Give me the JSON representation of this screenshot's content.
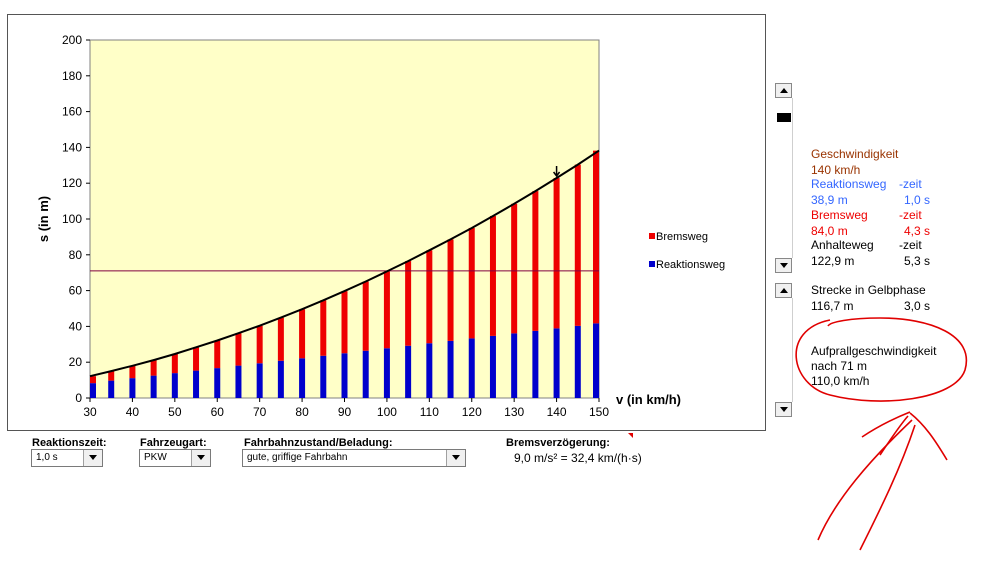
{
  "chart_data": {
    "type": "bar",
    "stacked": true,
    "x": [
      30,
      35,
      40,
      45,
      50,
      55,
      60,
      65,
      70,
      75,
      80,
      85,
      90,
      95,
      100,
      105,
      110,
      115,
      120,
      125,
      130,
      135,
      140,
      145,
      150
    ],
    "series": [
      {
        "name": "Reaktionsweg",
        "color": "#0000cc",
        "values": [
          8.3,
          9.7,
          11.1,
          12.5,
          13.9,
          15.3,
          16.7,
          18.1,
          19.4,
          20.8,
          22.2,
          23.6,
          25.0,
          26.4,
          27.8,
          29.2,
          30.6,
          31.9,
          33.3,
          34.7,
          36.1,
          37.5,
          38.9,
          40.3,
          41.7
        ]
      },
      {
        "name": "Bremsweg",
        "color": "#ee0000",
        "values": [
          3.9,
          5.3,
          6.9,
          8.7,
          10.7,
          13.0,
          15.4,
          18.1,
          21.0,
          24.1,
          27.4,
          31.0,
          34.7,
          38.7,
          42.9,
          47.3,
          51.9,
          56.7,
          61.7,
          67.0,
          72.4,
          78.1,
          84.0,
          90.1,
          96.5
        ]
      }
    ],
    "curve_name": "Anhalteweg",
    "hline_y": 71,
    "marker_x": 140,
    "xlabel": "v (in km/h)",
    "ylabel": "s (in m)",
    "xlim": [
      30,
      150
    ],
    "ylim": [
      0,
      200
    ],
    "xticks": [
      "30",
      "40",
      "50",
      "60",
      "70",
      "80",
      "90",
      "100",
      "110",
      "120",
      "130",
      "140",
      "150"
    ],
    "yticks": [
      "0",
      "20",
      "40",
      "60",
      "80",
      "100",
      "120",
      "140",
      "160",
      "180",
      "200"
    ],
    "plot_bg": "#ffffc8",
    "grid": false,
    "legend": "right"
  },
  "controls": {
    "reaktionszeit": {
      "label": "Reaktionszeit:",
      "value": "1,0 s"
    },
    "fahrzeugart": {
      "label": "Fahrzeugart:",
      "value": "PKW"
    },
    "fahrbahn": {
      "label": "Fahrbahnzustand/Beladung:",
      "value": "gute, griffige Fahrbahn"
    },
    "bremsverz": {
      "label": "Bremsverzögerung:",
      "value": "9,0 m/s² = 32,4 km/(h·s)"
    }
  },
  "info": {
    "geschw_title": "Geschwindigkeit",
    "geschw_value": "140 km/h",
    "reakt_title": "Reaktionsweg",
    "reakt_zeit_title": "-zeit",
    "reakt_weg": "38,9 m",
    "reakt_zeit": "1,0 s",
    "brems_title": "Bremsweg",
    "brems_zeit_title": "-zeit",
    "brems_weg": "84,0 m",
    "brems_zeit": "4,3 s",
    "anhalte_title": "Anhalteweg",
    "anhalte_zeit_title": "-zeit",
    "anhalte_weg": "122,9 m",
    "anhalte_zeit": "5,3 s",
    "gelb_title": "Strecke in Gelbphase",
    "gelb_weg": "116,7 m",
    "gelb_zeit": "3,0 s",
    "aufprall_title": "Aufprallgeschwindigkeit",
    "aufprall_nach": "nach 71 m",
    "aufprall_value": "110,0 km/h"
  },
  "colors": {
    "geschw": "#993300",
    "reakt": "#3366ff",
    "brems": "#ee0000",
    "annotation": "#e00000"
  }
}
